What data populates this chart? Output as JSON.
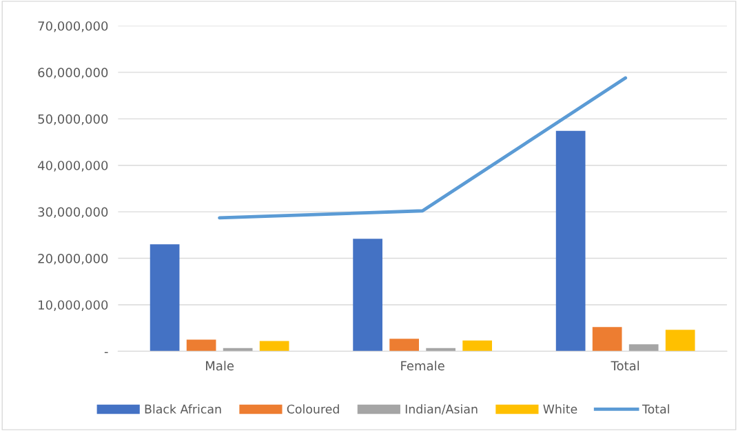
{
  "chart_data": {
    "type": "bar",
    "categories": [
      "Male",
      "Female",
      "Total"
    ],
    "series": [
      {
        "name": "Black African",
        "color": "#4472c4",
        "values": [
          23000000,
          24200000,
          47400000
        ]
      },
      {
        "name": "Coloured",
        "color": "#ed7d31",
        "values": [
          2500000,
          2700000,
          5200000
        ]
      },
      {
        "name": "Indian/Asian",
        "color": "#a5a5a5",
        "values": [
          700000,
          700000,
          1500000
        ]
      },
      {
        "name": "White",
        "color": "#ffc000",
        "values": [
          2200000,
          2300000,
          4600000
        ]
      },
      {
        "name": "Total",
        "type": "line",
        "color": "#5b9bd5",
        "values": [
          28700000,
          30200000,
          58800000
        ]
      }
    ],
    "ylim": [
      0,
      70000000
    ],
    "yticks": [
      {
        "value": 0,
        "label": "-"
      },
      {
        "value": 10000000,
        "label": "10,000,000"
      },
      {
        "value": 20000000,
        "label": "20,000,000"
      },
      {
        "value": 30000000,
        "label": "30,000,000"
      },
      {
        "value": 40000000,
        "label": "40,000,000"
      },
      {
        "value": 50000000,
        "label": "50,000,000"
      },
      {
        "value": 60000000,
        "label": "60,000,000"
      },
      {
        "value": 70000000,
        "label": "70,000,000"
      }
    ],
    "grid": "y",
    "legend": "bottom",
    "marker": "none",
    "line_style": "solid"
  }
}
